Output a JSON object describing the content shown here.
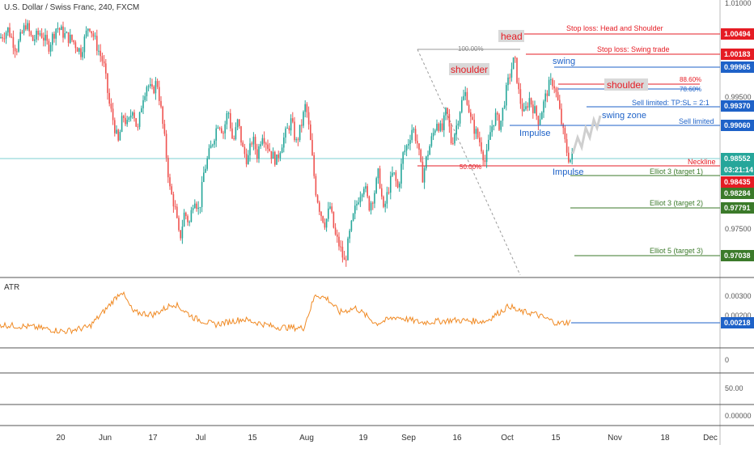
{
  "chart_title": "U.S. Dollar / Swiss Franc, 240, FXCM",
  "atr_label": "ATR",
  "x_axis_ticks": [
    "20",
    "Jun",
    "17",
    "Jul",
    "15",
    "Aug",
    "19",
    "Sep",
    "16",
    "Oct",
    "15",
    "Nov",
    "18",
    "Dec"
  ],
  "price_axis_ticks": [
    "1.01000",
    "0.99500",
    "0.97500"
  ],
  "atr_axis_ticks": [
    "0.00300",
    "0.00200",
    "0",
    "50.00",
    "0.00000"
  ],
  "price_badges": [
    {
      "value": "1.00494",
      "color": "#e51c24"
    },
    {
      "value": "1.00183",
      "color": "#e51c24"
    },
    {
      "value": "0.99965",
      "color": "#1e62c8"
    },
    {
      "value": "0.99370",
      "color": "#1e62c8"
    },
    {
      "value": "0.99060",
      "color": "#1e62c8"
    },
    {
      "value": "0.98552",
      "color": "#26a69a"
    },
    {
      "value": "03:21:14",
      "color": "#26a69a"
    },
    {
      "value": "0.98435",
      "color": "#e51c24"
    },
    {
      "value": "0.98284",
      "color": "#3b7a2a"
    },
    {
      "value": "0.97791",
      "color": "#3b7a2a"
    },
    {
      "value": "0.97038",
      "color": "#3b7a2a"
    }
  ],
  "atr_badge": {
    "value": "0.00218",
    "color": "#1e62c8"
  },
  "annotations": {
    "stop_head_shoulder": "Stop loss: Head and Shoulder",
    "stop_swing": "Stop loss: Swing trade",
    "swing": "swing",
    "fib_886": "88.60%",
    "fib_786": "78.60%",
    "sell_tp": "Sell limited: TP:SL = 2:1",
    "swing_zone": "swing zone",
    "sell_limited": "Sell limited",
    "impulse_1": "Impulse",
    "impulse_2": "Impulse",
    "neckline": "Neckline",
    "elliot3_t1": "Elliot 3 (target 1)",
    "elliot3_t2": "Elliot 3 (target 2)",
    "elliot5_t3": "Elliot 5 (target 3)",
    "fib_100": "100.00%",
    "fib_50": "50.00%",
    "head": "head",
    "shoulder_left": "shoulder",
    "shoulder_right": "shoulder"
  },
  "colors": {
    "up": "#26a69a",
    "down": "#ef5350",
    "atr_line": "#f08a24",
    "stop_red": "#e51c24",
    "blue": "#1e62c8",
    "green": "#3b7a2a",
    "label_bg": "#d9d9d9"
  },
  "chart_data": {
    "type": "candlestick",
    "title": "U.S. Dollar / Swiss Franc, 240, FXCM",
    "x_ticks": [
      "20",
      "Jun",
      "17",
      "Jul",
      "15",
      "Aug",
      "19",
      "Sep",
      "16",
      "Oct",
      "15",
      "Nov",
      "18",
      "Dec"
    ],
    "y_range": [
      0.965,
      1.012
    ],
    "indicator": {
      "name": "ATR",
      "last_value": 0.00218,
      "ticks": [
        0.003,
        0.002
      ]
    },
    "levels": [
      {
        "label": "Stop loss: Head and Shoulder",
        "price": 1.00494
      },
      {
        "label": "Stop loss: Swing trade",
        "price": 1.00183
      },
      {
        "label": "swing",
        "price": 0.99965
      },
      {
        "label": "Sell limited: TP:SL = 2:1",
        "price": 0.9937
      },
      {
        "label": "Sell limited",
        "price": 0.9906
      },
      {
        "label": "Neckline",
        "price": 0.98552
      },
      {
        "label": "Elliot 3 (target 1)",
        "price": 0.98284
      },
      {
        "label": "Elliot 3 (target 2)",
        "price": 0.97791
      },
      {
        "label": "Elliot 5 (target 3)",
        "price": 0.97038
      }
    ],
    "close_path": [
      [
        0,
        1.0065
      ],
      [
        10,
        1.008
      ],
      [
        20,
        1.0045
      ],
      [
        32,
        1.009
      ],
      [
        40,
        1.006
      ],
      [
        50,
        1.0075
      ],
      [
        60,
        1.005
      ],
      [
        70,
        1.0085
      ],
      [
        80,
        1.007
      ],
      [
        90,
        1.006
      ],
      [
        100,
        1.004
      ],
      [
        110,
        1.009
      ],
      [
        120,
        1.005
      ],
      [
        128,
        1.002
      ],
      [
        135,
        0.995
      ],
      [
        140,
        0.992
      ],
      [
        146,
        0.988
      ],
      [
        152,
        0.993
      ],
      [
        158,
        0.991
      ],
      [
        164,
        0.9945
      ],
      [
        170,
        0.99
      ],
      [
        176,
        0.996
      ],
      [
        182,
        0.9985
      ],
      [
        188,
        0.997
      ],
      [
        194,
        0.999
      ],
      [
        198,
        0.995
      ],
      [
        204,
        0.988
      ],
      [
        210,
        0.98
      ],
      [
        216,
        0.977
      ],
      [
        222,
        0.971
      ],
      [
        228,
        0.976
      ],
      [
        234,
        0.974
      ],
      [
        240,
        0.979
      ],
      [
        246,
        0.976
      ],
      [
        252,
        0.983
      ],
      [
        258,
        0.986
      ],
      [
        264,
        0.989
      ],
      [
        270,
        0.992
      ],
      [
        276,
        0.99
      ],
      [
        282,
        0.994
      ],
      [
        288,
        0.988
      ],
      [
        294,
        0.992
      ],
      [
        300,
        0.987
      ],
      [
        306,
        0.985
      ],
      [
        312,
        0.989
      ],
      [
        318,
        0.986
      ],
      [
        324,
        0.99
      ],
      [
        330,
        0.988
      ],
      [
        336,
        0.986
      ],
      [
        342,
        0.985
      ],
      [
        348,
        0.988
      ],
      [
        354,
        0.99
      ],
      [
        360,
        0.992
      ],
      [
        366,
        0.988
      ],
      [
        372,
        0.991
      ],
      [
        378,
        0.995
      ],
      [
        384,
        0.988
      ],
      [
        390,
        0.98
      ],
      [
        396,
        0.976
      ],
      [
        402,
        0.974
      ],
      [
        408,
        0.977
      ],
      [
        414,
        0.972
      ],
      [
        420,
        0.97
      ],
      [
        426,
        0.967
      ],
      [
        432,
        0.972
      ],
      [
        438,
        0.976
      ],
      [
        444,
        0.979
      ],
      [
        450,
        0.981
      ],
      [
        456,
        0.977
      ],
      [
        462,
        0.979
      ],
      [
        468,
        0.983
      ],
      [
        474,
        0.976
      ],
      [
        480,
        0.98
      ],
      [
        486,
        0.983
      ],
      [
        492,
        0.98
      ],
      [
        498,
        0.986
      ],
      [
        504,
        0.988
      ],
      [
        510,
        0.991
      ],
      [
        516,
        0.988
      ],
      [
        522,
        0.982
      ],
      [
        528,
        0.986
      ],
      [
        534,
        0.989
      ],
      [
        540,
        0.992
      ],
      [
        546,
        0.99
      ],
      [
        552,
        0.994
      ],
      [
        558,
        0.988
      ],
      [
        564,
        0.991
      ],
      [
        570,
        0.995
      ],
      [
        576,
        0.997
      ],
      [
        582,
        0.992
      ],
      [
        588,
        0.99
      ],
      [
        594,
        0.988
      ],
      [
        600,
        0.9845
      ],
      [
        606,
        0.99
      ],
      [
        612,
        0.993
      ],
      [
        618,
        0.991
      ],
      [
        624,
        0.996
      ],
      [
        630,
        1.0
      ],
      [
        636,
        1.003
      ],
      [
        642,
        0.996
      ],
      [
        648,
        0.993
      ],
      [
        654,
        0.996
      ],
      [
        660,
        0.994
      ],
      [
        666,
        0.992
      ],
      [
        672,
        0.995
      ],
      [
        678,
        0.998
      ],
      [
        684,
        0.999
      ],
      [
        690,
        0.995
      ],
      [
        696,
        0.99
      ],
      [
        700,
        0.987
      ],
      [
        704,
        0.985
      ],
      [
        708,
        0.986
      ]
    ]
  }
}
